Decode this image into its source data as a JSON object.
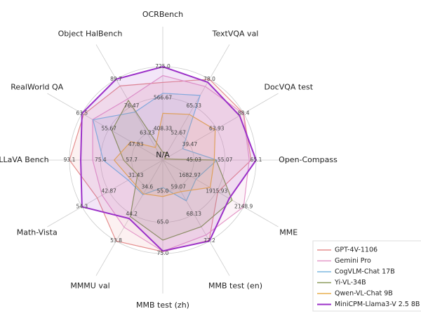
{
  "chart_data": {
    "type": "radar",
    "categories": [
      "OCRBench",
      "TextVQA val",
      "DocVQA test",
      "Open-Compass",
      "MME",
      "MMB test (en)",
      "MMB test (zh)",
      "MMMU val",
      "Math-Vista",
      "LLaVA Bench",
      "RealWorld QA",
      "Object HalBench"
    ],
    "center_label": "N/A",
    "axis_ranges": [
      [
        250,
        725
      ],
      [
        40,
        78
      ],
      [
        15,
        88.4
      ],
      [
        35,
        65.1
      ],
      [
        1450,
        2148.9
      ],
      [
        50,
        77.2
      ],
      [
        45,
        75
      ],
      [
        25,
        53.8
      ],
      [
        20,
        54.3
      ],
      [
        40,
        93.1
      ],
      [
        40,
        63.5
      ],
      [
        50,
        89.7
      ]
    ],
    "axis_ticks": [
      [
        408.33,
        566.67,
        {
          "value": 725,
          "label": "725.0"
        }
      ],
      [
        52.67,
        65.33,
        {
          "value": 78,
          "label": "78.0"
        }
      ],
      [
        39.47,
        63.93,
        88.4
      ],
      [
        45.03,
        55.07,
        65.1
      ],
      [
        1682.97,
        1915.93,
        2148.9
      ],
      [
        59.07,
        68.13,
        77.2
      ],
      [
        {
          "value": 55,
          "label": "55.0"
        },
        {
          "value": 65,
          "label": "65.0"
        },
        {
          "value": 75,
          "label": "75.0"
        }
      ],
      [
        34.6,
        44.2,
        53.8
      ],
      [
        31.43,
        42.87,
        54.3
      ],
      [
        57.7,
        75.4,
        93.1
      ],
      [
        47.83,
        55.67,
        63.5
      ],
      [
        63.23,
        76.47,
        89.7
      ]
    ],
    "series": [
      {
        "name": "GPT-4V-1106",
        "color": "#e58f8f",
        "values": [
          645,
          78.0,
          88.4,
          63.5,
          1926,
          77.0,
          74.4,
          53.8,
          47.8,
          93.1,
          63.0,
          86.4
        ]
      },
      {
        "name": "Gemini Pro",
        "color": "#e59ac9",
        "values": [
          680,
          74.6,
          88.1,
          62.9,
          2148.9,
          75.2,
          74.3,
          48.9,
          45.8,
          79.9,
          60.4,
          80.0
        ]
      },
      {
        "name": "CogVLM-Chat 17B",
        "color": "#7fb9e0",
        "values": [
          590,
          70.4,
          33,
          52.5,
          1736.6,
          63.7,
          53.8,
          37.3,
          34.7,
          73.9,
          60.3,
          73.6
        ]
      },
      {
        "name": "Yi-VL-34B",
        "color": "#8a9a5b",
        "values": [
          290,
          43.4,
          16.9,
          52.2,
          2050.2,
          72.4,
          70.7,
          45.1,
          30.7,
          62.3,
          54.8,
          79.3
        ]
      },
      {
        "name": "Qwen-VL-Chat 9B",
        "color": "#e8b050",
        "values": [
          488,
          61.5,
          62.6,
          51.6,
          1860,
          60.6,
          56.7,
          37.0,
          33.8,
          67.7,
          49.3,
          56.2
        ]
      },
      {
        "name": "MiniCPM-Llama3-V 2.5 8B",
        "color": "#9b30c8",
        "values": [
          725,
          76.6,
          84.8,
          65.1,
          2024.6,
          77.2,
          74.2,
          45.8,
          54.3,
          86.7,
          63.5,
          89.7
        ]
      }
    ]
  }
}
